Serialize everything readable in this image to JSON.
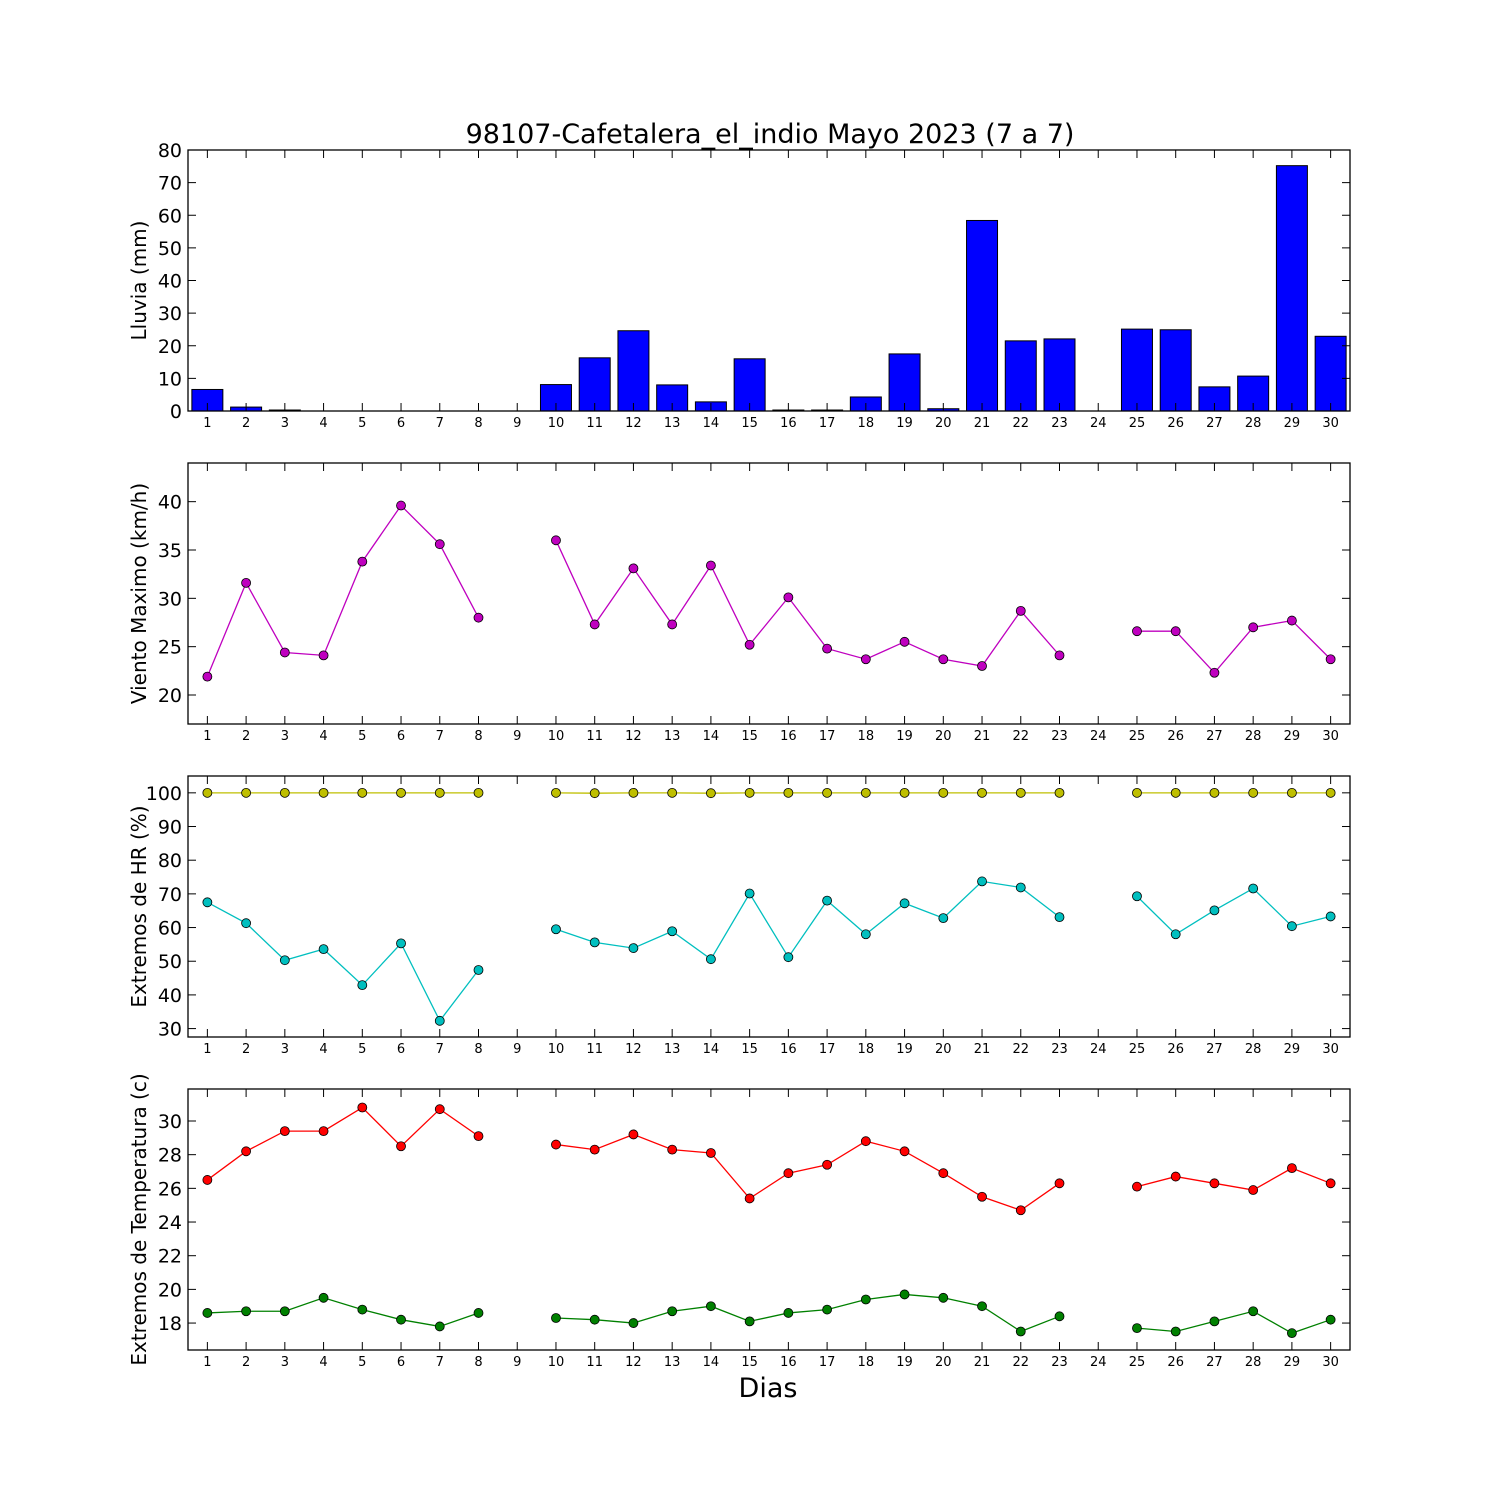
{
  "title": "98107-Cafetalera_el_indio Mayo 2023  (7 a 7)",
  "xlabel": "Dias",
  "colors": {
    "rain_bar": "#0000ff",
    "wind": "#bf00bf",
    "hr_max": "#bfbf00",
    "hr_min": "#00bfbf",
    "temp_max": "#ff0000",
    "temp_min": "#008000"
  },
  "chart_data": [
    {
      "type": "bar",
      "ylabel": "Lluvia (mm)",
      "ylim": [
        0,
        80
      ],
      "yticks": [
        0,
        10,
        20,
        30,
        40,
        50,
        60,
        70,
        80
      ],
      "xlim": [
        0.5,
        30.5
      ],
      "categories": [
        1,
        2,
        3,
        4,
        5,
        6,
        7,
        8,
        9,
        10,
        11,
        12,
        13,
        14,
        15,
        16,
        17,
        18,
        19,
        20,
        21,
        22,
        23,
        24,
        25,
        26,
        27,
        28,
        29,
        30
      ],
      "values": [
        6.6,
        1.2,
        0.3,
        0,
        0,
        0,
        0,
        0,
        0,
        8.1,
        16.3,
        24.6,
        8.0,
        2.8,
        16.0,
        0.3,
        0.3,
        4.3,
        17.5,
        0.7,
        58.4,
        21.5,
        22.1,
        0,
        25.1,
        24.9,
        7.4,
        10.7,
        75.2,
        22.9
      ],
      "grid": false
    },
    {
      "type": "line",
      "ylabel": "Viento Maximo (km/h)",
      "ylim": [
        17,
        44
      ],
      "yticks": [
        20,
        25,
        30,
        35,
        40
      ],
      "xlim": [
        0.5,
        30.5
      ],
      "x": [
        1,
        2,
        3,
        4,
        5,
        6,
        7,
        8,
        9,
        10,
        11,
        12,
        13,
        14,
        15,
        16,
        17,
        18,
        19,
        20,
        21,
        22,
        23,
        24,
        25,
        26,
        27,
        28,
        29,
        30
      ],
      "series": [
        {
          "values": [
            21.9,
            31.6,
            24.4,
            24.1,
            33.8,
            39.6,
            35.6,
            28.0,
            null,
            36.0,
            27.3,
            33.1,
            27.3,
            33.4,
            25.2,
            30.1,
            24.8,
            23.7,
            25.5,
            23.7,
            23.0,
            28.7,
            24.1,
            null,
            26.6,
            26.6,
            22.3,
            27.0,
            27.7,
            23.7
          ]
        }
      ],
      "grid": false
    },
    {
      "type": "line",
      "ylabel": "Extremos de HR (%)",
      "ylim": [
        27.5,
        105
      ],
      "yticks": [
        30,
        40,
        50,
        60,
        70,
        80,
        90,
        100
      ],
      "xlim": [
        0.5,
        30.5
      ],
      "x": [
        1,
        2,
        3,
        4,
        5,
        6,
        7,
        8,
        9,
        10,
        11,
        12,
        13,
        14,
        15,
        16,
        17,
        18,
        19,
        20,
        21,
        22,
        23,
        24,
        25,
        26,
        27,
        28,
        29,
        30
      ],
      "series": [
        {
          "values": [
            100,
            100,
            100,
            100,
            100,
            100,
            100,
            100,
            null,
            100,
            99.9,
            100,
            100,
            99.9,
            100,
            100,
            100,
            100,
            100,
            100,
            100,
            100,
            100,
            null,
            100,
            100,
            100,
            100,
            100,
            100
          ]
        },
        {
          "values": [
            67.5,
            61.3,
            50.3,
            53.6,
            42.9,
            55.3,
            32.3,
            47.4,
            null,
            59.5,
            55.6,
            53.9,
            58.9,
            50.6,
            70.1,
            51.2,
            68.0,
            58.0,
            67.2,
            62.8,
            73.7,
            71.9,
            63.1,
            null,
            69.3,
            58.0,
            65.1,
            71.6,
            60.4,
            63.3
          ]
        }
      ],
      "grid": false
    },
    {
      "type": "line",
      "ylabel": "Extremos de Temperatura (c)",
      "ylim": [
        16.4,
        31.9
      ],
      "yticks": [
        18,
        20,
        22,
        24,
        26,
        28,
        30
      ],
      "xlim": [
        0.5,
        30.5
      ],
      "x": [
        1,
        2,
        3,
        4,
        5,
        6,
        7,
        8,
        9,
        10,
        11,
        12,
        13,
        14,
        15,
        16,
        17,
        18,
        19,
        20,
        21,
        22,
        23,
        24,
        25,
        26,
        27,
        28,
        29,
        30
      ],
      "series": [
        {
          "values": [
            26.5,
            28.2,
            29.4,
            29.4,
            30.8,
            28.5,
            30.7,
            29.1,
            null,
            28.6,
            28.3,
            29.2,
            28.3,
            28.1,
            25.4,
            26.9,
            27.4,
            28.8,
            28.2,
            26.9,
            25.5,
            24.7,
            26.3,
            null,
            26.1,
            26.7,
            26.3,
            25.9,
            27.2,
            26.3
          ]
        },
        {
          "values": [
            18.6,
            18.7,
            18.7,
            19.5,
            18.8,
            18.2,
            17.8,
            18.6,
            null,
            18.3,
            18.2,
            18.0,
            18.7,
            19.0,
            18.1,
            18.6,
            18.8,
            19.4,
            19.7,
            19.5,
            19.0,
            17.5,
            18.4,
            null,
            17.7,
            17.5,
            18.1,
            18.7,
            17.4,
            18.2
          ]
        }
      ],
      "grid": false
    }
  ]
}
